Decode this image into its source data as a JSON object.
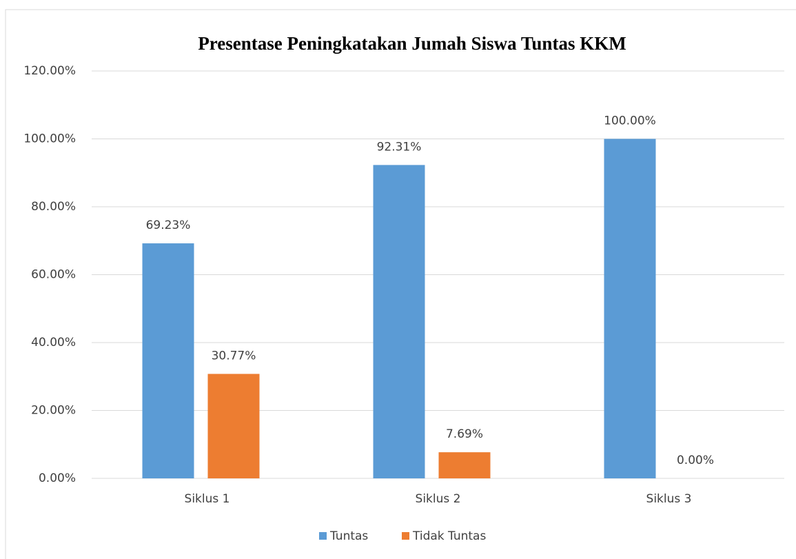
{
  "chart_data": {
    "type": "bar",
    "title": "Presentase Peningkatakan Jumah Siswa Tuntas KKM",
    "categories": [
      "Siklus 1",
      "Siklus 2",
      "Siklus 3"
    ],
    "series": [
      {
        "name": "Tuntas",
        "color": "#5b9bd5",
        "values": [
          69.23,
          92.31,
          100
        ],
        "value_labels": [
          "69.23%",
          "92.31%",
          "100.00%"
        ]
      },
      {
        "name": "Tidak Tuntas",
        "color": "#ed7d31",
        "values": [
          30.77,
          7.69,
          0
        ],
        "value_labels": [
          "30.77%",
          "7.69%",
          "0.00%"
        ]
      }
    ],
    "ylim": [
      0,
      120
    ],
    "yticks": [
      {
        "value": 0,
        "label": "0.00%"
      },
      {
        "value": 20,
        "label": "20.00%"
      },
      {
        "value": 40,
        "label": "40.00%"
      },
      {
        "value": 60,
        "label": "60.00%"
      },
      {
        "value": 80,
        "label": "80.00%"
      },
      {
        "value": 100,
        "label": "100.00%"
      },
      {
        "value": 120,
        "label": "120.00%"
      }
    ],
    "grid": true,
    "legend": "bottom"
  }
}
